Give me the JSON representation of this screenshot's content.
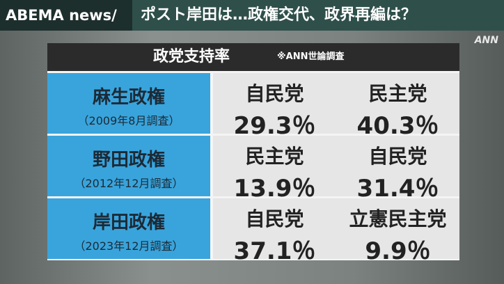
{
  "header": {
    "brand": "ABEMA news/",
    "headline": "ポスト岸田は…政権交代、政界再編は？",
    "watermark": "ANN"
  },
  "table": {
    "title": "政党支持率",
    "note": "※ANN世論調査",
    "rows": [
      {
        "period": "麻生政権",
        "survey": "（2009年8月調査）",
        "parties": [
          {
            "name": "自民党",
            "support": "29.3％"
          },
          {
            "name": "民主党",
            "support": "40.3％"
          }
        ]
      },
      {
        "period": "野田政権",
        "survey": "（2012年12月調査）",
        "parties": [
          {
            "name": "民主党",
            "support": "13.9％"
          },
          {
            "name": "自民党",
            "support": "31.4％"
          }
        ]
      },
      {
        "period": "岸田政権",
        "survey": "（2023年12月調査）",
        "parties": [
          {
            "name": "自民党",
            "support": "37.1％"
          },
          {
            "name": "立憲民主党",
            "support": "9.9％"
          }
        ]
      }
    ]
  }
}
